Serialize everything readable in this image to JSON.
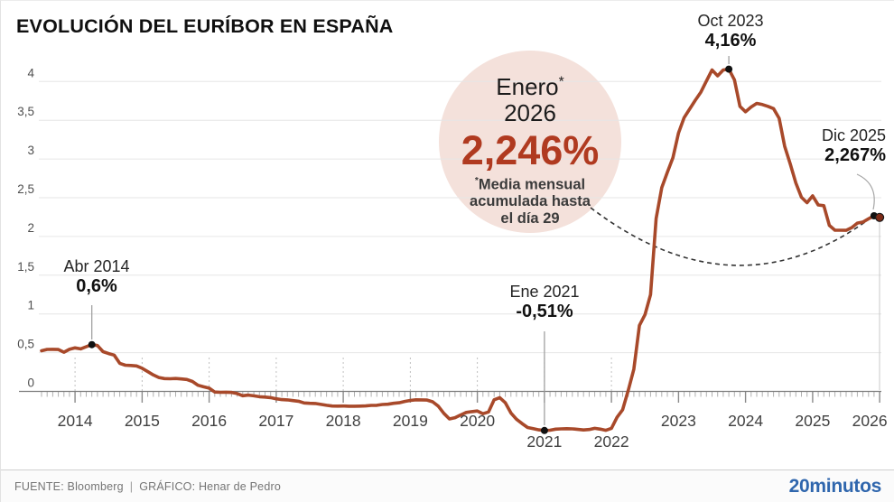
{
  "header": {
    "title": "EVOLUCIÓN DEL EURÍBOR EN ESPAÑA"
  },
  "footer": {
    "source": "FUENTE: Bloomberg",
    "separator": "|",
    "credit": "GRÁFICO: Henar de Pedro",
    "brand": "20minutos"
  },
  "callout": {
    "month": "Enero",
    "asterisk": "*",
    "year": "2026",
    "value": "2,246%",
    "note_lines": [
      "Media mensual",
      "acumulada hasta",
      "el día 29"
    ]
  },
  "colors": {
    "line": "#a8492a",
    "accent_number": "#b03a20",
    "callout_bg": "#f4e1db",
    "annotation_dot": "#111111",
    "final_dot": "#7d2a16",
    "gridline": "#e6e6e6",
    "axis": "#7d7d7d",
    "brand_blue": "#2f66ad"
  },
  "chart_data": {
    "type": "line",
    "title": "EVOLUCIÓN DEL EURÍBOR EN ESPAÑA",
    "unit": "%",
    "start_year": 2013,
    "start_month": 7,
    "x_tick_years": [
      2014,
      2015,
      2016,
      2017,
      2018,
      2019,
      2020,
      2021,
      2022,
      2023,
      2024,
      2025,
      2026
    ],
    "lowered_year_labels": [
      2021,
      2022
    ],
    "riser_years": [
      2014,
      2015,
      2016,
      2017,
      2018,
      2019,
      2020,
      2021,
      2022
    ],
    "y_ticks": [
      0,
      0.5,
      1,
      1.5,
      2,
      2.5,
      3,
      3.5,
      4
    ],
    "y_tick_labels": [
      "0",
      "0,5",
      "1",
      "1,5",
      "2",
      "2,5",
      "3",
      "3,5",
      "4"
    ],
    "ylim": [
      -0.6,
      4.3
    ],
    "grid": true,
    "series": [
      {
        "name": "Euríbor",
        "values": [
          0.525,
          0.542,
          0.543,
          0.541,
          0.506,
          0.543,
          0.562,
          0.549,
          0.577,
          0.604,
          0.592,
          0.513,
          0.488,
          0.469,
          0.362,
          0.338,
          0.335,
          0.329,
          0.298,
          0.255,
          0.212,
          0.18,
          0.165,
          0.163,
          0.167,
          0.161,
          0.154,
          0.128,
          0.079,
          0.059,
          0.042,
          -0.008,
          -0.012,
          -0.01,
          -0.013,
          -0.028,
          -0.056,
          -0.048,
          -0.057,
          -0.069,
          -0.074,
          -0.08,
          -0.095,
          -0.106,
          -0.11,
          -0.119,
          -0.127,
          -0.149,
          -0.154,
          -0.156,
          -0.168,
          -0.18,
          -0.189,
          -0.19,
          -0.189,
          -0.191,
          -0.191,
          -0.19,
          -0.188,
          -0.181,
          -0.18,
          -0.169,
          -0.166,
          -0.154,
          -0.147,
          -0.129,
          -0.116,
          -0.108,
          -0.109,
          -0.112,
          -0.134,
          -0.19,
          -0.283,
          -0.356,
          -0.339,
          -0.304,
          -0.272,
          -0.261,
          -0.253,
          -0.288,
          -0.266,
          -0.108,
          -0.081,
          -0.147,
          -0.279,
          -0.359,
          -0.415,
          -0.466,
          -0.481,
          -0.497,
          -0.505,
          -0.501,
          -0.487,
          -0.484,
          -0.481,
          -0.484,
          -0.491,
          -0.498,
          -0.492,
          -0.477,
          -0.487,
          -0.502,
          -0.477,
          -0.335,
          -0.237,
          0.013,
          0.287,
          0.852,
          0.992,
          1.249,
          2.233,
          2.629,
          2.828,
          3.018,
          3.337,
          3.534,
          3.647,
          3.757,
          3.862,
          4.007,
          4.149,
          4.073,
          4.149,
          4.16,
          4.022,
          3.679,
          3.609,
          3.671,
          3.718,
          3.703,
          3.68,
          3.65,
          3.526,
          3.166,
          2.936,
          2.691,
          2.506,
          2.436,
          2.525,
          2.407,
          2.398,
          2.143,
          2.081,
          2.081,
          2.079,
          2.114,
          2.172,
          2.187,
          2.229,
          2.267,
          2.246
        ]
      }
    ],
    "annotations": [
      {
        "id": "abr2014",
        "date_label": "Abr 2014",
        "value_label": "0,6%",
        "month_index": 9,
        "value": 0.604
      },
      {
        "id": "ene2021",
        "date_label": "Ene 2021",
        "value_label": "-0,51%",
        "month_index": 90,
        "value": -0.505
      },
      {
        "id": "oct2023",
        "date_label": "Oct 2023",
        "value_label": "4,16%",
        "month_index": 123,
        "value": 4.16
      },
      {
        "id": "dic2025",
        "date_label": "Dic 2025",
        "value_label": "2,267%",
        "month_index": 149,
        "value": 2.267
      }
    ],
    "final_point": {
      "label": "Enero 2026",
      "value": 2.246,
      "month_index": 150
    }
  }
}
